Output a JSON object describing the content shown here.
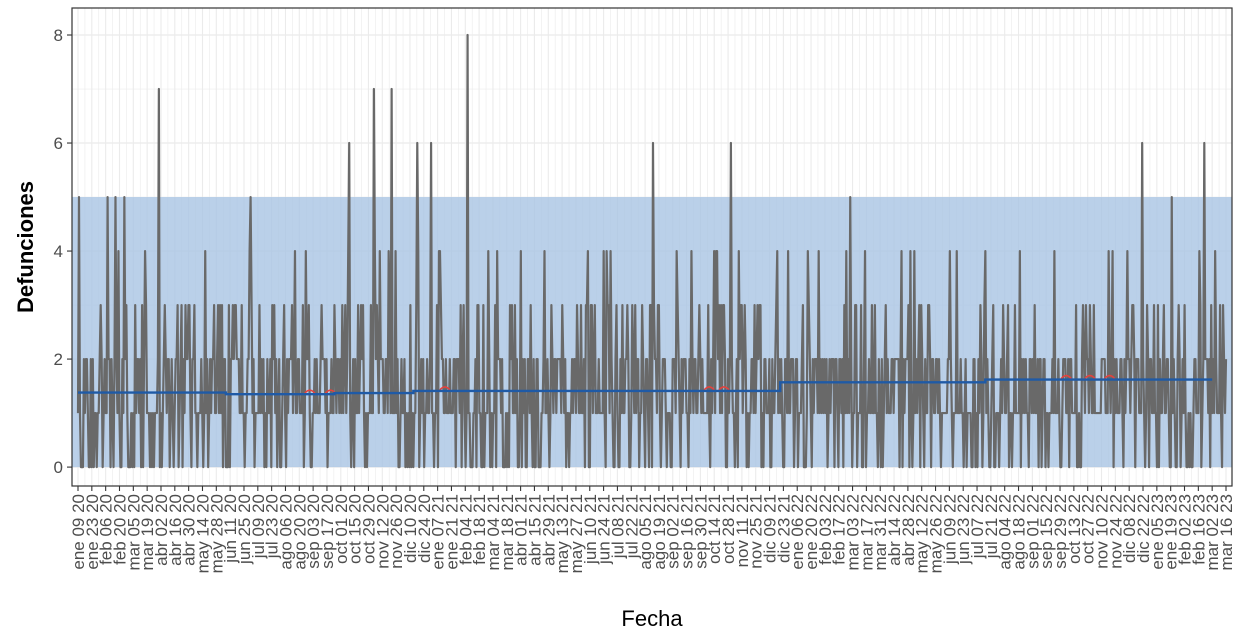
{
  "chart_data": {
    "type": "line",
    "xlabel": "Fecha",
    "ylabel": "Defunciones",
    "ylim": [
      -0.35,
      8.5
    ],
    "yticks": [
      0,
      2,
      4,
      6,
      8
    ],
    "x_tick_labels": [
      "ene 09 20",
      "ene 23 20",
      "feb 06 20",
      "feb 20 20",
      "mar 05 20",
      "mar 19 20",
      "abr 02 20",
      "abr 16 20",
      "abr 30 20",
      "may 14 20",
      "may 28 20",
      "jun 11 20",
      "jun 25 20",
      "jul 09 20",
      "jul 23 20",
      "ago 06 20",
      "ago 20 20",
      "sep 03 20",
      "sep 17 20",
      "oct 01 20",
      "oct 15 20",
      "oct 29 20",
      "nov 12 20",
      "nov 26 20",
      "dic 10 20",
      "dic 24 20",
      "ene 07 21",
      "ene 21 21",
      "feb 04 21",
      "feb 18 21",
      "mar 04 21",
      "mar 18 21",
      "abr 01 21",
      "abr 15 21",
      "abr 29 21",
      "may 13 21",
      "may 27 21",
      "jun 10 21",
      "jun 24 21",
      "jul 08 21",
      "jul 22 21",
      "ago 05 21",
      "ago 19 21",
      "sep 02 21",
      "sep 16 21",
      "sep 30 21",
      "oct 14 21",
      "oct 28 21",
      "nov 11 21",
      "nov 25 21",
      "dic 09 21",
      "dic 23 21",
      "ene 06 22",
      "ene 20 22",
      "feb 03 22",
      "feb 17 22",
      "mar 03 22",
      "mar 17 22",
      "mar 31 22",
      "abr 14 22",
      "abr 28 22",
      "may 12 22",
      "may 26 22",
      "jun 09 22",
      "jun 23 22",
      "jul 07 22",
      "jul 21 22",
      "ago 04 22",
      "ago 18 22",
      "sep 01 22",
      "sep 15 22",
      "sep 29 22",
      "oct 13 22",
      "oct 27 22",
      "nov 10 22",
      "nov 24 22",
      "dic 08 22",
      "dic 22 22",
      "ene 05 23",
      "ene 19 23",
      "feb 02 23",
      "feb 16 23",
      "mar 02 23",
      "mar 16 23"
    ],
    "band": {
      "from": 0,
      "to": 5
    },
    "series": [
      {
        "role": "observed",
        "seed": 20240517,
        "values_pattern_peaks": [
          {
            "index": 1,
            "value": 5
          },
          {
            "index": 30,
            "value": 5
          },
          {
            "index": 38,
            "value": 5
          },
          {
            "index": 47,
            "value": 5
          },
          {
            "index": 82,
            "value": 7
          },
          {
            "index": 175,
            "value": 5
          },
          {
            "index": 275,
            "value": 6
          },
          {
            "index": 300,
            "value": 7
          },
          {
            "index": 318,
            "value": 7
          },
          {
            "index": 344,
            "value": 6
          },
          {
            "index": 358,
            "value": 6
          },
          {
            "index": 395,
            "value": 8
          },
          {
            "index": 583,
            "value": 6
          },
          {
            "index": 662,
            "value": 6
          },
          {
            "index": 783,
            "value": 5
          },
          {
            "index": 1079,
            "value": 6
          },
          {
            "index": 1109,
            "value": 5
          },
          {
            "index": 1142,
            "value": 6
          }
        ]
      },
      {
        "role": "average",
        "steps": [
          {
            "from": 0,
            "to": 150,
            "value": 1.38
          },
          {
            "from": 150,
            "to": 260,
            "value": 1.35
          },
          {
            "from": 260,
            "to": 340,
            "value": 1.37
          },
          {
            "from": 340,
            "to": 712,
            "value": 1.41
          },
          {
            "from": 712,
            "to": 920,
            "value": 1.57
          },
          {
            "from": 920,
            "to": 1150,
            "value": 1.62
          }
        ]
      }
    ],
    "n_days": 1165,
    "colors": {
      "band": "#a9c4e4",
      "observed": "#696969",
      "average": "#1f5aa6",
      "highlight": "#e8413c",
      "grid": "#ebebeb",
      "panel_border": "#333333"
    }
  }
}
